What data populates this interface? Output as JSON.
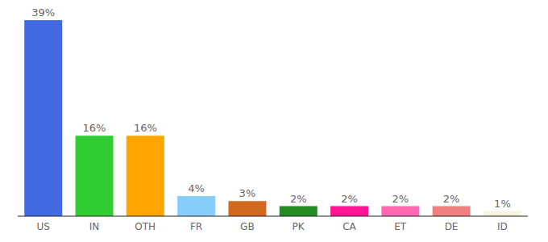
{
  "chart_data": {
    "type": "bar",
    "categories": [
      "US",
      "IN",
      "OTH",
      "FR",
      "GB",
      "PK",
      "CA",
      "ET",
      "DE",
      "ID"
    ],
    "values": [
      39,
      16,
      16,
      4,
      3,
      2,
      2,
      2,
      2,
      1
    ],
    "value_labels": [
      "39%",
      "16%",
      "16%",
      "4%",
      "3%",
      "2%",
      "2%",
      "2%",
      "2%",
      "1%"
    ],
    "colors": [
      "#4169e1",
      "#32cd32",
      "#ffa500",
      "#87cefa",
      "#d2691e",
      "#228b22",
      "#ff1493",
      "#ff69b4",
      "#f08080",
      "#f8f4dc"
    ],
    "ylim": [
      0,
      39
    ],
    "data_labels": true,
    "tick_labels": "x",
    "grid": false
  }
}
